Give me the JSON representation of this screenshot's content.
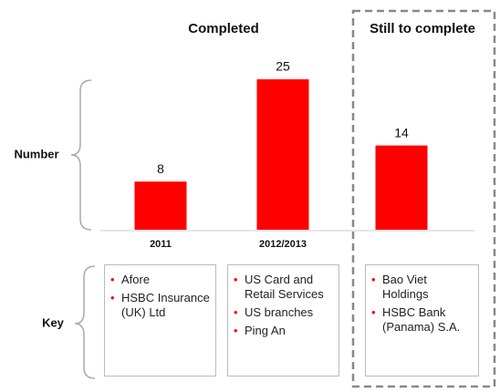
{
  "chart_data": {
    "type": "bar",
    "groups": [
      "Completed",
      "Still to complete"
    ],
    "y_label": "Number",
    "key_label": "Key",
    "categories": [
      "2011",
      "2012/2013",
      null
    ],
    "values": [
      8,
      25,
      14
    ],
    "color": "#ff0000",
    "keys": [
      [
        "Afore",
        "HSBC Insurance (UK) Ltd"
      ],
      [
        "US Card and Retail Services",
        "US branches",
        "Ping An"
      ],
      [
        "Bao Viet Holdings",
        "HSBC Bank (Panama) S.A."
      ]
    ]
  }
}
